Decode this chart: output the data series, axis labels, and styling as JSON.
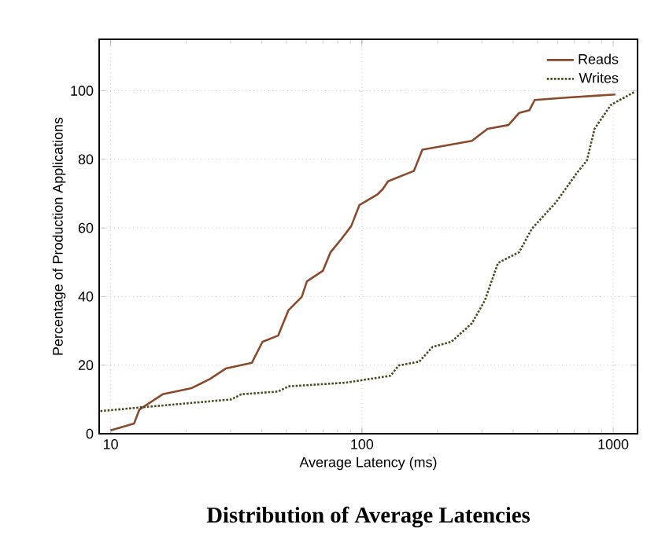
{
  "chart_data": {
    "type": "line",
    "title": "Distribution of Average Latencies",
    "xlabel": "Average Latency (ms)",
    "ylabel": "Percentage of Production Applications",
    "log": "x",
    "xlim": [
      9,
      1250
    ],
    "ylim": [
      0,
      115
    ],
    "xticks": [
      10,
      100,
      1000
    ],
    "yticks": [
      0,
      20,
      40,
      60,
      80,
      100
    ],
    "grid": true,
    "legend": "top right",
    "series": [
      {
        "name": "Reads",
        "color": "#8b4a2b",
        "line_style": "solid",
        "x": [
          10,
          12.4,
          13,
          16.1,
          21,
          24.9,
          28.7,
          36.5,
          40.2,
          46.4,
          51,
          57.6,
          60.4,
          69.9,
          75,
          82.7,
          90.6,
          97.8,
          115,
          121,
          127,
          161,
          174,
          274,
          316,
          383,
          422,
          464,
          487,
          650,
          1020
        ],
        "values": [
          1,
          3,
          7,
          11.5,
          13.3,
          16,
          19,
          20.7,
          26.8,
          28.6,
          36,
          39.9,
          44.4,
          47.5,
          52.9,
          56.7,
          60.5,
          66.7,
          69.7,
          71.3,
          73.6,
          76.6,
          82.8,
          85.4,
          88.9,
          90,
          93.5,
          94.3,
          97.3,
          98,
          98.9
        ]
      },
      {
        "name": "Writes",
        "color": "#4a4a1e",
        "line_style": "dotted",
        "x": [
          9.1,
          13.3,
          30.2,
          33.1,
          46.4,
          51,
          86.6,
          130,
          140,
          169,
          191,
          227,
          274,
          309,
          348,
          422,
          475,
          591,
          715,
          786,
          843,
          977,
          1210
        ],
        "values": [
          6.6,
          7.7,
          10,
          11.5,
          12.3,
          13.8,
          14.9,
          16.9,
          19.9,
          21,
          25.3,
          26.8,
          32.2,
          39,
          49.8,
          52.9,
          59.8,
          67.4,
          75.9,
          79.7,
          88.9,
          95.8,
          99.6
        ]
      }
    ]
  }
}
